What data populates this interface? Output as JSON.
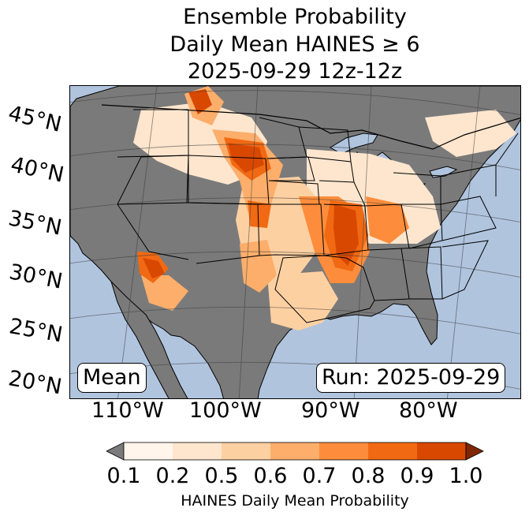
{
  "title": {
    "line1": "Ensemble Probability",
    "line2": "Daily Mean HAINES ≥ 6",
    "line3": "2025-09-29 12z-12z"
  },
  "map": {
    "lat_labels": [
      "45°N",
      "40°N",
      "35°N",
      "30°N",
      "25°N",
      "20°N"
    ],
    "lon_labels": [
      "110°W",
      "100°W",
      "90°W",
      "80°W"
    ],
    "stat_box": "Mean",
    "run_box": "Run: 2025-09-29",
    "colors": {
      "ocean": "#b0c4de",
      "no_data_land": "#7a7a7a"
    },
    "probability_regions": [
      {
        "region": "Northern Rockies / Montana",
        "level": 0.8
      },
      {
        "region": "Northern Plains / Dakotas",
        "level": 0.8
      },
      {
        "region": "Central Plains / Kansas-Oklahoma",
        "level": 0.6
      },
      {
        "region": "Mid-Mississippi Valley / Missouri-Arkansas",
        "level": 0.9
      },
      {
        "region": "Lower Mississippi Valley / Louisiana",
        "level": 0.9
      },
      {
        "region": "Texas",
        "level": 0.5
      },
      {
        "region": "Lower Colorado River / Arizona",
        "level": 0.9
      },
      {
        "region": "Ohio Valley",
        "level": 0.6
      },
      {
        "region": "Northeast",
        "level": 0.2
      }
    ]
  },
  "colorbar": {
    "label": "HAINES Daily Mean Probability",
    "ticks": [
      "0.1",
      "0.2",
      "0.5",
      "0.6",
      "0.7",
      "0.8",
      "0.9",
      "1.0"
    ],
    "under_color": "#7a7a7a",
    "over_color": "#7f2704",
    "colors": [
      "#fff5eb",
      "#fee6ce",
      "#fdd0a2",
      "#fdae6b",
      "#fd8d3c",
      "#f16913",
      "#d94801"
    ]
  }
}
